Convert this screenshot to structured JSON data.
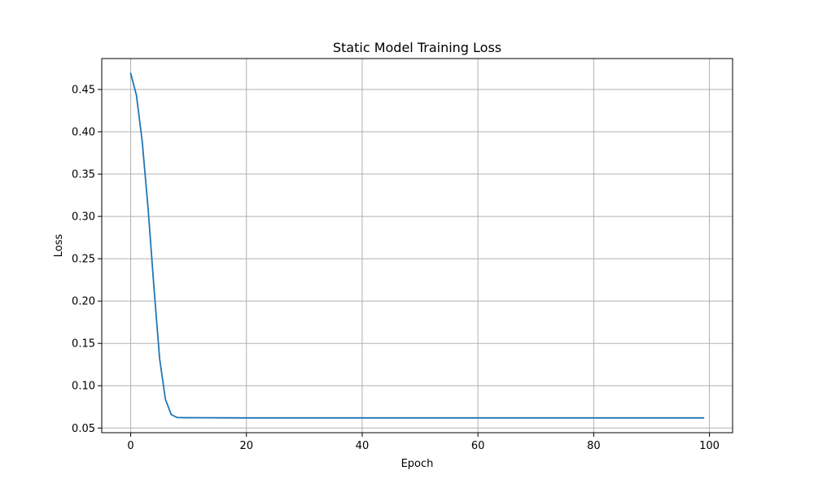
{
  "chart_data": {
    "type": "line",
    "title": "Static Model Training Loss",
    "xlabel": "Epoch",
    "ylabel": "Loss",
    "xlim": [
      -5,
      104
    ],
    "ylim": [
      0.0445,
      0.4865
    ],
    "xticks": [
      0,
      20,
      40,
      60,
      80,
      100
    ],
    "yticks": [
      0.05,
      0.1,
      0.15,
      0.2,
      0.25,
      0.3,
      0.35,
      0.4,
      0.45
    ],
    "ytick_labels": [
      "0.05",
      "0.10",
      "0.15",
      "0.20",
      "0.25",
      "0.30",
      "0.35",
      "0.40",
      "0.45"
    ],
    "grid": true,
    "legend": "none",
    "series": [
      {
        "color": "#1f77b4",
        "x": [
          0,
          1,
          2,
          3,
          4,
          5,
          6,
          7,
          8,
          9,
          10,
          15,
          20,
          30,
          40,
          50,
          60,
          70,
          80,
          90,
          99
        ],
        "y": [
          0.469,
          0.443,
          0.388,
          0.31,
          0.218,
          0.132,
          0.084,
          0.066,
          0.0625,
          0.0622,
          0.0622,
          0.0621,
          0.062,
          0.062,
          0.062,
          0.062,
          0.062,
          0.062,
          0.062,
          0.062,
          0.062
        ]
      }
    ]
  }
}
